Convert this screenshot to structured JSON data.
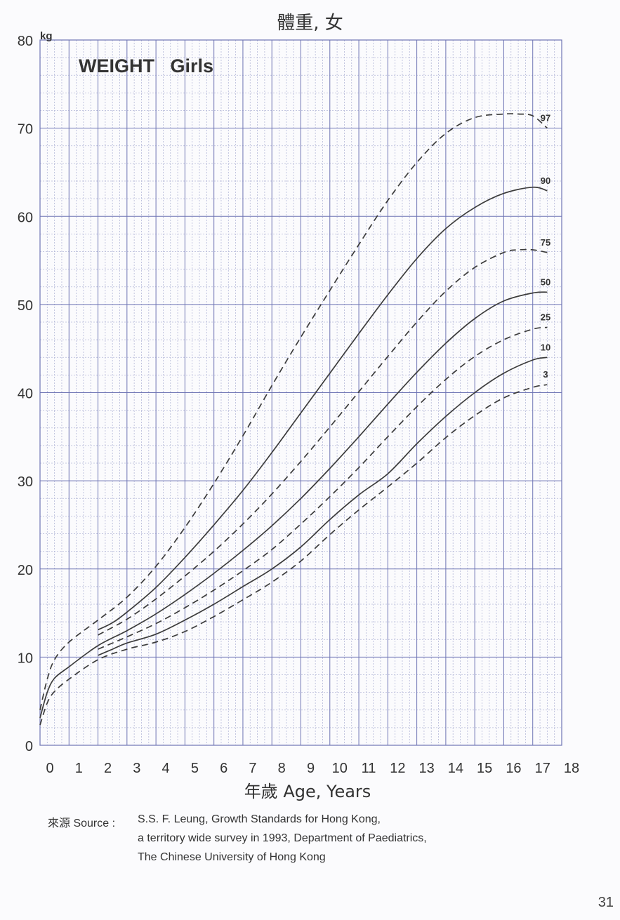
{
  "page_title": "體重, 女",
  "source": {
    "label": "來源 Source :",
    "lines": [
      "S.S. F. Leung, Growth Standards for Hong Kong,",
      "a territory wide survey in 1993, Department of Paediatrics,",
      "The Chinese University of Hong Kong"
    ]
  },
  "page_number": "31",
  "chart_data": {
    "type": "line",
    "title": "WEIGHT   Girls",
    "xlabel": "年歲 Age, Years",
    "ylabel": "",
    "y_unit": "kg",
    "xlim": [
      0,
      18
    ],
    "ylim": [
      0,
      80
    ],
    "x_ticks": [
      0,
      1,
      2,
      3,
      4,
      5,
      6,
      7,
      8,
      9,
      10,
      11,
      12,
      13,
      14,
      15,
      16,
      17,
      18
    ],
    "y_ticks": [
      0,
      10,
      20,
      30,
      40,
      50,
      60,
      70,
      80
    ],
    "grid": true,
    "colors": {
      "grid_major": "#6e74b4",
      "grid_minor": "#b4b8d8",
      "curve": "#3c3c3c"
    },
    "series": [
      {
        "name": "97",
        "dash": true,
        "x": [
          0,
          0.25,
          0.5,
          1,
          2,
          3,
          4,
          5,
          6,
          7,
          8,
          9,
          10,
          11,
          12,
          13,
          14,
          15,
          16,
          16.5,
          17,
          17.5
        ],
        "y": [
          4.0,
          7.5,
          9.7,
          11.7,
          14.2,
          16.8,
          20.3,
          24.7,
          29.7,
          35.1,
          40.8,
          46.3,
          51.6,
          56.8,
          61.8,
          66.1,
          69.4,
          71.2,
          71.6,
          71.6,
          71.4,
          70.0
        ]
      },
      {
        "name": "90",
        "dash": false,
        "x": [
          2,
          2.5,
          3,
          4,
          5,
          6,
          7,
          8,
          9,
          10,
          11,
          12,
          13,
          14,
          15,
          16,
          17,
          17.5
        ],
        "y": [
          13.1,
          13.9,
          15.1,
          17.9,
          21.3,
          25.0,
          28.9,
          33.2,
          37.7,
          42.2,
          46.7,
          51.1,
          55.2,
          58.6,
          61.0,
          62.6,
          63.3,
          62.9
        ]
      },
      {
        "name": "75",
        "dash": true,
        "x": [
          2,
          3,
          4,
          5,
          6,
          7,
          8,
          9,
          10,
          11,
          12,
          13,
          14,
          15,
          16,
          16.5,
          17,
          17.5
        ],
        "y": [
          12.5,
          14.3,
          16.6,
          19.2,
          22.0,
          25.1,
          28.5,
          32.2,
          36.1,
          40.1,
          44.1,
          48.0,
          51.5,
          54.2,
          55.9,
          56.2,
          56.2,
          55.9
        ]
      },
      {
        "name": "50",
        "dash": false,
        "x": [
          0,
          0.25,
          0.5,
          1,
          2,
          3,
          4,
          5,
          6,
          7,
          8,
          9,
          10,
          11,
          12,
          13,
          14,
          15,
          16,
          17,
          17.5
        ],
        "y": [
          3.1,
          6.0,
          7.6,
          8.9,
          11.3,
          13.0,
          14.9,
          17.1,
          19.5,
          22.1,
          24.9,
          28.0,
          31.4,
          35.0,
          38.7,
          42.3,
          45.6,
          48.4,
          50.4,
          51.3,
          51.4
        ]
      },
      {
        "name": "25",
        "dash": true,
        "x": [
          2,
          3,
          4,
          5,
          6,
          7,
          8,
          9,
          10,
          11,
          12,
          13,
          14,
          15,
          16,
          17,
          17.5
        ],
        "y": [
          10.9,
          12.3,
          13.8,
          15.6,
          17.6,
          19.8,
          22.2,
          25.1,
          28.2,
          31.5,
          35.0,
          38.4,
          41.5,
          44.1,
          46.0,
          47.2,
          47.4
        ]
      },
      {
        "name": "10",
        "dash": false,
        "x": [
          2,
          2.5,
          3,
          4,
          5,
          6,
          7,
          8,
          9,
          10,
          11,
          12,
          13,
          14,
          15,
          16,
          17,
          17.5
        ],
        "y": [
          10.2,
          10.9,
          11.6,
          12.6,
          14.2,
          16.0,
          18.0,
          20.0,
          22.5,
          25.6,
          28.4,
          30.8,
          34.2,
          37.3,
          40.0,
          42.2,
          43.7,
          44.0
        ]
      },
      {
        "name": "3",
        "dash": true,
        "x": [
          0,
          0.25,
          0.5,
          1,
          2,
          3,
          4,
          5,
          6,
          7,
          8,
          9,
          10,
          11,
          12,
          13,
          14,
          15,
          16,
          17,
          17.5
        ],
        "y": [
          2.3,
          4.8,
          6.1,
          7.5,
          9.7,
          10.9,
          11.7,
          12.9,
          14.6,
          16.5,
          18.5,
          20.9,
          23.9,
          26.7,
          29.3,
          32.0,
          34.9,
          37.4,
          39.4,
          40.6,
          40.9
        ]
      }
    ],
    "curve_labels": [
      {
        "name": "97",
        "text": "97"
      },
      {
        "name": "90",
        "text": "90"
      },
      {
        "name": "75",
        "text": "75"
      },
      {
        "name": "50",
        "text": "50"
      },
      {
        "name": "25",
        "text": "25"
      },
      {
        "name": "10",
        "text": "10"
      },
      {
        "name": "3",
        "text": "3"
      }
    ]
  }
}
